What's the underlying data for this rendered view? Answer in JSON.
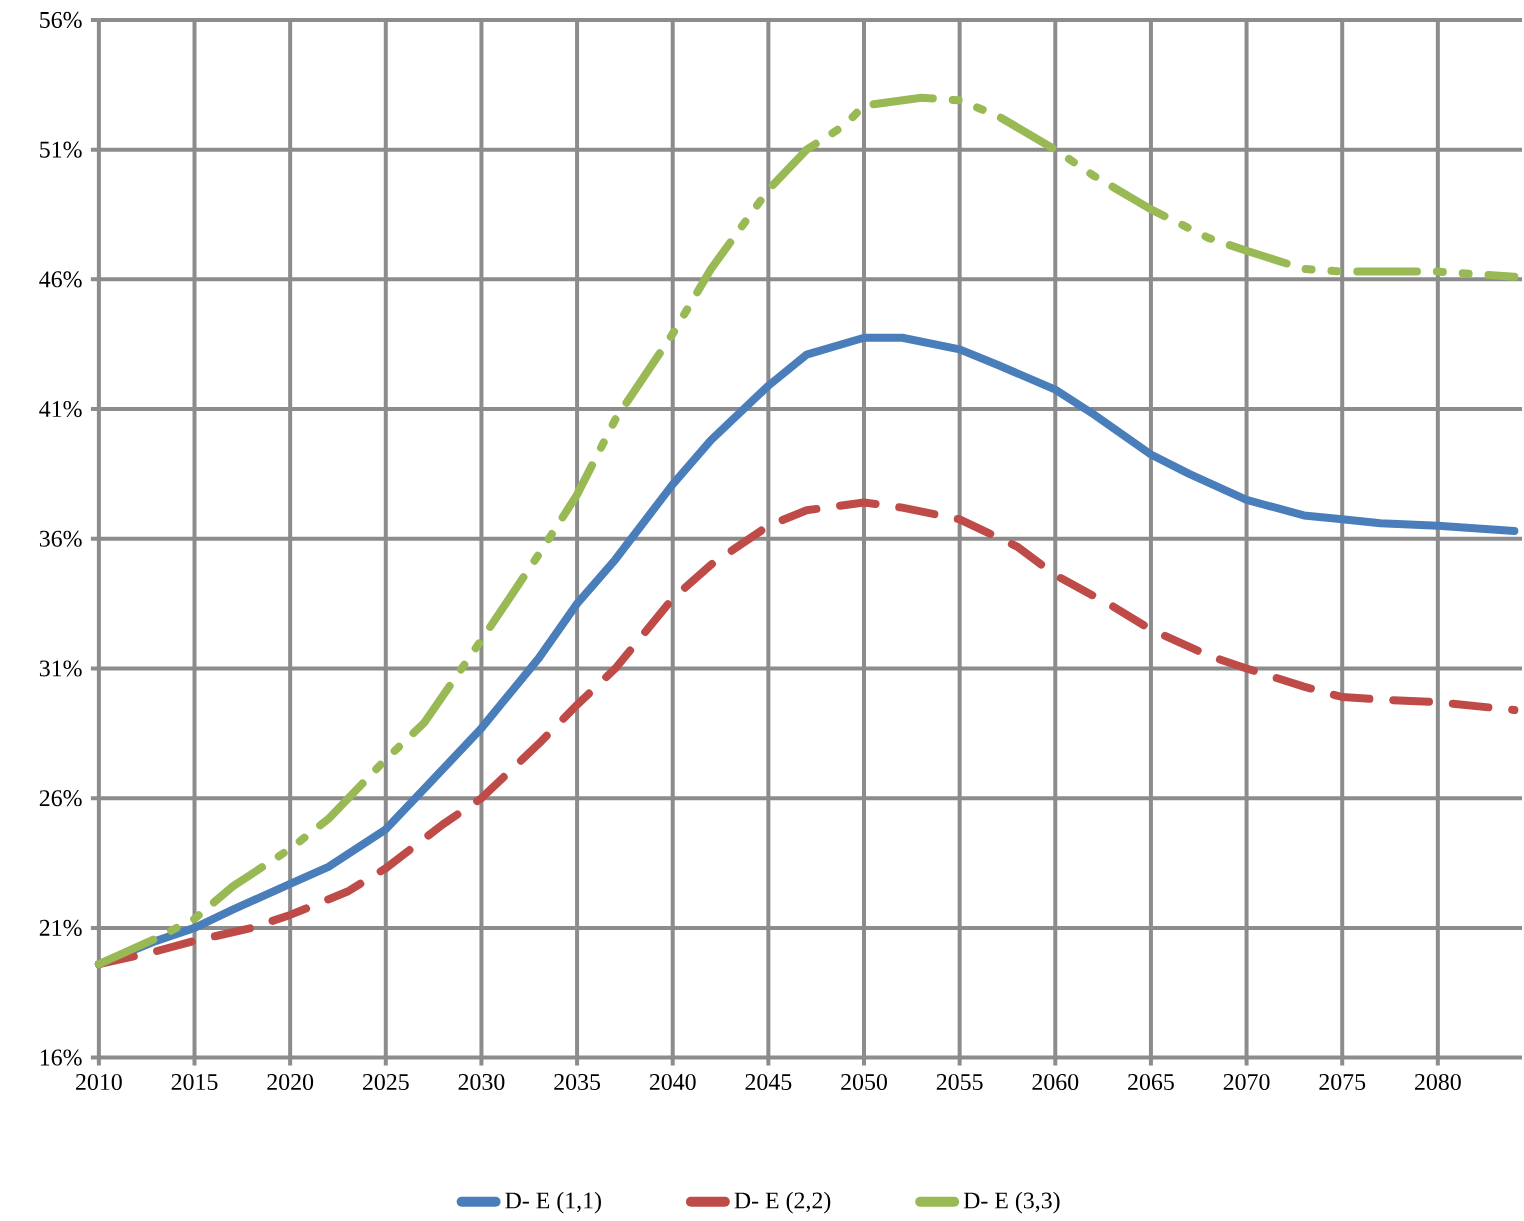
{
  "chart_data": {
    "type": "line",
    "x": [
      2010,
      2013,
      2015,
      2017,
      2020,
      2022,
      2025,
      2027,
      2030,
      2033,
      2035,
      2037,
      2040,
      2042,
      2045,
      2047,
      2050,
      2052,
      2055,
      2057,
      2060,
      2062,
      2065,
      2067,
      2070,
      2073,
      2075,
      2077,
      2080,
      2084
    ],
    "series": [
      {
        "name": "D-   E (1,1)",
        "color": "#4a7ebb",
        "line_style": "solid",
        "values": [
          19.6,
          20.5,
          21.0,
          21.7,
          22.7,
          23.35,
          24.8,
          26.35,
          28.7,
          31.4,
          33.5,
          35.2,
          38.1,
          39.8,
          41.9,
          43.1,
          43.75,
          43.75,
          43.3,
          42.7,
          41.75,
          40.8,
          39.25,
          38.5,
          37.5,
          36.9,
          36.75,
          36.6,
          36.5,
          36.3
        ]
      },
      {
        "name": "D-   E (2,2)",
        "color": "#be4b48",
        "line_style": "dashed",
        "x": [
          2010,
          2013,
          2015,
          2018,
          2020,
          2023,
          2025,
          2028,
          2030,
          2033,
          2035,
          2037,
          2040,
          2042,
          2045,
          2047,
          2050,
          2052,
          2055,
          2058,
          2060,
          2063,
          2065,
          2068,
          2070,
          2073,
          2075,
          2077,
          2080,
          2084
        ],
        "values": [
          19.6,
          20.1,
          20.5,
          21.0,
          21.5,
          22.4,
          23.3,
          25.0,
          26.0,
          28.1,
          29.6,
          31.0,
          33.7,
          35.0,
          36.5,
          37.1,
          37.4,
          37.2,
          36.75,
          35.7,
          34.6,
          33.4,
          32.5,
          31.5,
          31.0,
          30.3,
          29.9,
          29.8,
          29.7,
          29.4
        ]
      },
      {
        "name": "D-   E (3,3)",
        "color": "#98b954",
        "line_style": "dashdot",
        "x": [
          2010,
          2013,
          2015,
          2017,
          2020,
          2022,
          2025,
          2027,
          2030,
          2033,
          2035,
          2037,
          2040,
          2042,
          2045,
          2047,
          2049,
          2050,
          2053,
          2055,
          2057,
          2060,
          2062,
          2065,
          2068,
          2070,
          2073,
          2075,
          2080,
          2084
        ],
        "values": [
          19.6,
          20.6,
          21.35,
          22.6,
          24.05,
          25.2,
          27.5,
          28.9,
          32.1,
          35.4,
          37.7,
          40.6,
          43.9,
          46.4,
          49.45,
          51.0,
          51.95,
          52.7,
          53.0,
          52.9,
          52.3,
          51.0,
          50.0,
          48.7,
          47.6,
          47.1,
          46.4,
          46.3,
          46.3,
          46.1
        ]
      }
    ],
    "xlim": [
      2010,
      2084.4
    ],
    "xticks": [
      2010,
      2015,
      2020,
      2025,
      2030,
      2035,
      2040,
      2045,
      2050,
      2055,
      2060,
      2065,
      2070,
      2075,
      2080
    ],
    "ylim": [
      16,
      56
    ],
    "yticks": [
      {
        "value": 16,
        "label": "16%"
      },
      {
        "value": 21,
        "label": "21%"
      },
      {
        "value": 26,
        "label": "26%"
      },
      {
        "value": 31,
        "label": "31%"
      },
      {
        "value": 36,
        "label": "36%"
      },
      {
        "value": 41,
        "label": "41%"
      },
      {
        "value": 46,
        "label": "46%"
      },
      {
        "value": 51,
        "label": "51%"
      },
      {
        "value": 56,
        "label": "56%"
      }
    ],
    "grid": true,
    "legend": "bottom"
  }
}
